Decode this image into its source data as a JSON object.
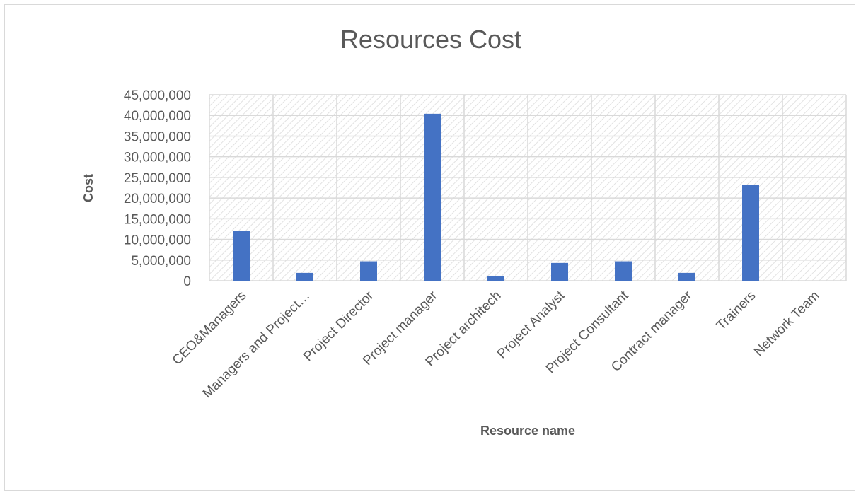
{
  "chart_data": {
    "type": "bar",
    "title": "Resources Cost",
    "xlabel": "Resource name",
    "ylabel": "Cost",
    "categories": [
      "CEO&Managers",
      "Managers and Project…",
      "Project Director",
      "Project manager",
      "Project architech",
      "Project Analyst",
      "Project Consultant",
      "Contract manager",
      "Trainers",
      "Network Team"
    ],
    "series": [
      {
        "values": [
          12000000,
          1900000,
          4700000,
          40400000,
          1200000,
          4300000,
          4700000,
          1900000,
          23200000,
          0
        ]
      }
    ],
    "ylim": [
      0,
      45000000
    ],
    "yticks": [
      0,
      5000000,
      10000000,
      15000000,
      20000000,
      25000000,
      30000000,
      35000000,
      40000000,
      45000000
    ],
    "ytick_labels": [
      "0",
      "5,000,000",
      "10,000,000",
      "15,000,000",
      "20,000,000",
      "25,000,000",
      "30,000,000",
      "35,000,000",
      "40,000,000",
      "45,000,000"
    ],
    "grid": true,
    "plot_background": "diagonal-hatch",
    "legend": "none",
    "colors": {
      "bar": "#4472c4",
      "grid": "#d9d9d9",
      "hatch": "#d9d9d9",
      "text": "#595959"
    }
  }
}
